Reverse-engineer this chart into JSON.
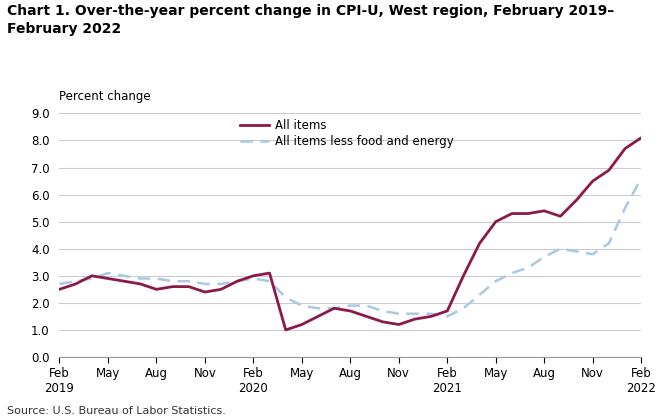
{
  "title_line1": "Chart 1. Over-the-year percent change in CPI-U, West region, February 2019–",
  "title_line2": "February 2022",
  "ylabel": "Percent change",
  "source": "Source: U.S. Bureau of Labor Statistics.",
  "ylim": [
    0.0,
    9.0
  ],
  "yticks": [
    0.0,
    1.0,
    2.0,
    3.0,
    4.0,
    5.0,
    6.0,
    7.0,
    8.0,
    9.0
  ],
  "all_items_color": "#8B1A4A",
  "all_items_less_color": "#A8C8E8",
  "background_color": "#FFFFFF",
  "grid_color": "#CCCCCC",
  "all_items": [
    2.5,
    2.7,
    3.0,
    2.9,
    2.8,
    2.7,
    2.5,
    2.6,
    2.6,
    2.4,
    2.5,
    2.8,
    3.0,
    3.1,
    1.0,
    1.2,
    1.5,
    1.8,
    1.7,
    1.5,
    1.3,
    1.2,
    1.4,
    1.5,
    1.7,
    3.0,
    4.2,
    5.0,
    5.3,
    5.3,
    5.4,
    5.2,
    5.8,
    6.5,
    6.9,
    7.7,
    8.1
  ],
  "all_items_less": [
    2.7,
    2.8,
    2.9,
    3.1,
    3.0,
    2.9,
    2.9,
    2.8,
    2.8,
    2.7,
    2.7,
    2.8,
    2.9,
    2.8,
    2.2,
    1.9,
    1.8,
    1.8,
    1.9,
    1.9,
    1.7,
    1.6,
    1.6,
    1.6,
    1.5,
    1.8,
    2.3,
    2.8,
    3.1,
    3.3,
    3.7,
    4.0,
    3.9,
    3.8,
    4.2,
    5.5,
    6.6
  ],
  "xtick_labels": [
    "Feb\n2019",
    "May",
    "Aug",
    "Nov",
    "Feb\n2020",
    "May",
    "Aug",
    "Nov",
    "Feb\n2021",
    "May",
    "Aug",
    "Nov",
    "Feb\n2022"
  ],
  "xtick_positions": [
    0,
    3,
    6,
    9,
    12,
    15,
    18,
    21,
    24,
    27,
    30,
    33,
    36
  ],
  "legend_all_items": "All items",
  "legend_all_items_less": "All items less food and energy",
  "title_fontsize": 10,
  "axis_fontsize": 8.5,
  "source_fontsize": 8
}
